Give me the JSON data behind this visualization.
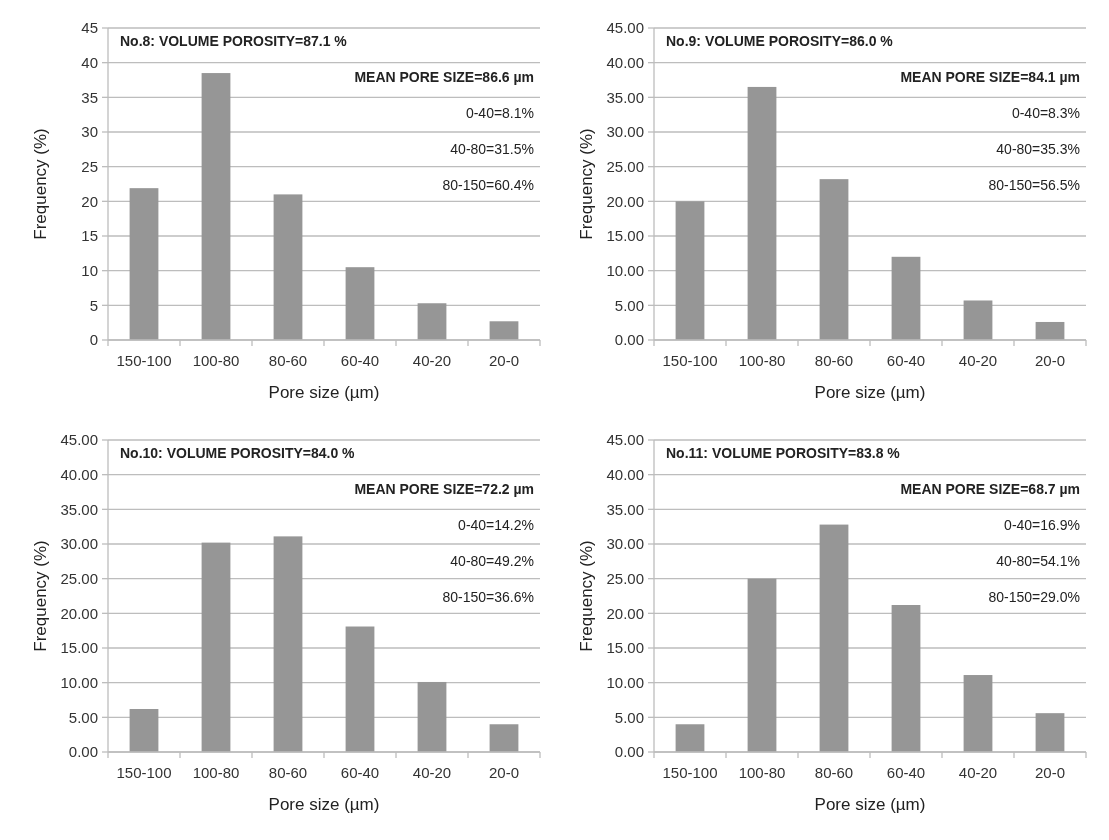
{
  "chart_data": [
    {
      "type": "bar",
      "xlabel": "Pore size (µm)",
      "ylabel": "Frequency (%)",
      "categories": [
        "150-100",
        "100-80",
        "80-60",
        "60-40",
        "40-20",
        "20-0"
      ],
      "values": [
        21.9,
        38.5,
        21.0,
        10.5,
        5.3,
        2.7
      ],
      "color": "#969696",
      "ylim": [
        0,
        45
      ],
      "yticks": [
        0,
        5,
        10,
        15,
        20,
        25,
        30,
        35,
        40,
        45
      ],
      "grid": "y",
      "annotations": [
        "No.8: VOLUME POROSITY=87.1 %",
        "MEAN PORE SIZE=86.6 µm",
        "0-40=8.1%",
        "40-80=31.5%",
        "80-150=60.4%"
      ]
    },
    {
      "type": "bar",
      "xlabel": "Pore size (µm)",
      "ylabel": "Frequency (%)",
      "categories": [
        "150-100",
        "100-80",
        "80-60",
        "60-40",
        "40-20",
        "20-0"
      ],
      "values": [
        20.0,
        36.5,
        23.2,
        12.0,
        5.7,
        2.6
      ],
      "color": "#969696",
      "ylim": [
        0,
        45
      ],
      "yticks": [
        {
          "value": 0,
          "label": "0.00"
        },
        {
          "value": 5,
          "label": "5.00"
        },
        {
          "value": 10,
          "label": "10.00"
        },
        {
          "value": 15,
          "label": "15.00"
        },
        {
          "value": 20,
          "label": "20.00"
        },
        {
          "value": 25,
          "label": "25.00"
        },
        {
          "value": 30,
          "label": "30.00"
        },
        {
          "value": 35,
          "label": "35.00"
        },
        {
          "value": 40,
          "label": "40.00"
        },
        {
          "value": 45,
          "label": "45.00"
        }
      ],
      "grid": "y",
      "annotations": [
        "No.9: VOLUME POROSITY=86.0 %",
        "MEAN PORE SIZE=84.1 µm",
        "0-40=8.3%",
        "40-80=35.3%",
        "80-150=56.5%"
      ]
    },
    {
      "type": "bar",
      "xlabel": "Pore size (µm)",
      "ylabel": "Frequency (%)",
      "categories": [
        "150-100",
        "100-80",
        "80-60",
        "60-40",
        "40-20",
        "20-0"
      ],
      "values": [
        6.2,
        30.2,
        31.1,
        18.1,
        10.1,
        4.0
      ],
      "color": "#969696",
      "ylim": [
        0,
        45
      ],
      "yticks": [
        {
          "value": 0,
          "label": "0.00"
        },
        {
          "value": 5,
          "label": "5.00"
        },
        {
          "value": 10,
          "label": "10.00"
        },
        {
          "value": 15,
          "label": "15.00"
        },
        {
          "value": 20,
          "label": "20.00"
        },
        {
          "value": 25,
          "label": "25.00"
        },
        {
          "value": 30,
          "label": "30.00"
        },
        {
          "value": 35,
          "label": "35.00"
        },
        {
          "value": 40,
          "label": "40.00"
        },
        {
          "value": 45,
          "label": "45.00"
        }
      ],
      "grid": "y",
      "annotations": [
        "No.10: VOLUME POROSITY=84.0 %",
        "MEAN PORE SIZE=72.2 µm",
        "0-40=14.2%",
        "40-80=49.2%",
        "80-150=36.6%"
      ]
    },
    {
      "type": "bar",
      "xlabel": "Pore size (µm)",
      "ylabel": "Frequency (%)",
      "categories": [
        "150-100",
        "100-80",
        "80-60",
        "60-40",
        "40-20",
        "20-0"
      ],
      "values": [
        4.0,
        25.0,
        32.8,
        21.2,
        11.1,
        5.6
      ],
      "color": "#969696",
      "ylim": [
        0,
        45
      ],
      "yticks": [
        {
          "value": 0,
          "label": "0.00"
        },
        {
          "value": 5,
          "label": "5.00"
        },
        {
          "value": 10,
          "label": "10.00"
        },
        {
          "value": 15,
          "label": "15.00"
        },
        {
          "value": 20,
          "label": "20.00"
        },
        {
          "value": 25,
          "label": "25.00"
        },
        {
          "value": 30,
          "label": "30.00"
        },
        {
          "value": 35,
          "label": "35.00"
        },
        {
          "value": 40,
          "label": "40.00"
        },
        {
          "value": 45,
          "label": "45.00"
        }
      ],
      "grid": "y",
      "annotations": [
        "No.11: VOLUME POROSITY=83.8 %",
        "MEAN PORE SIZE=68.7 µm",
        "0-40=16.9%",
        "40-80=54.1%",
        "80-150=29.0%"
      ]
    }
  ]
}
